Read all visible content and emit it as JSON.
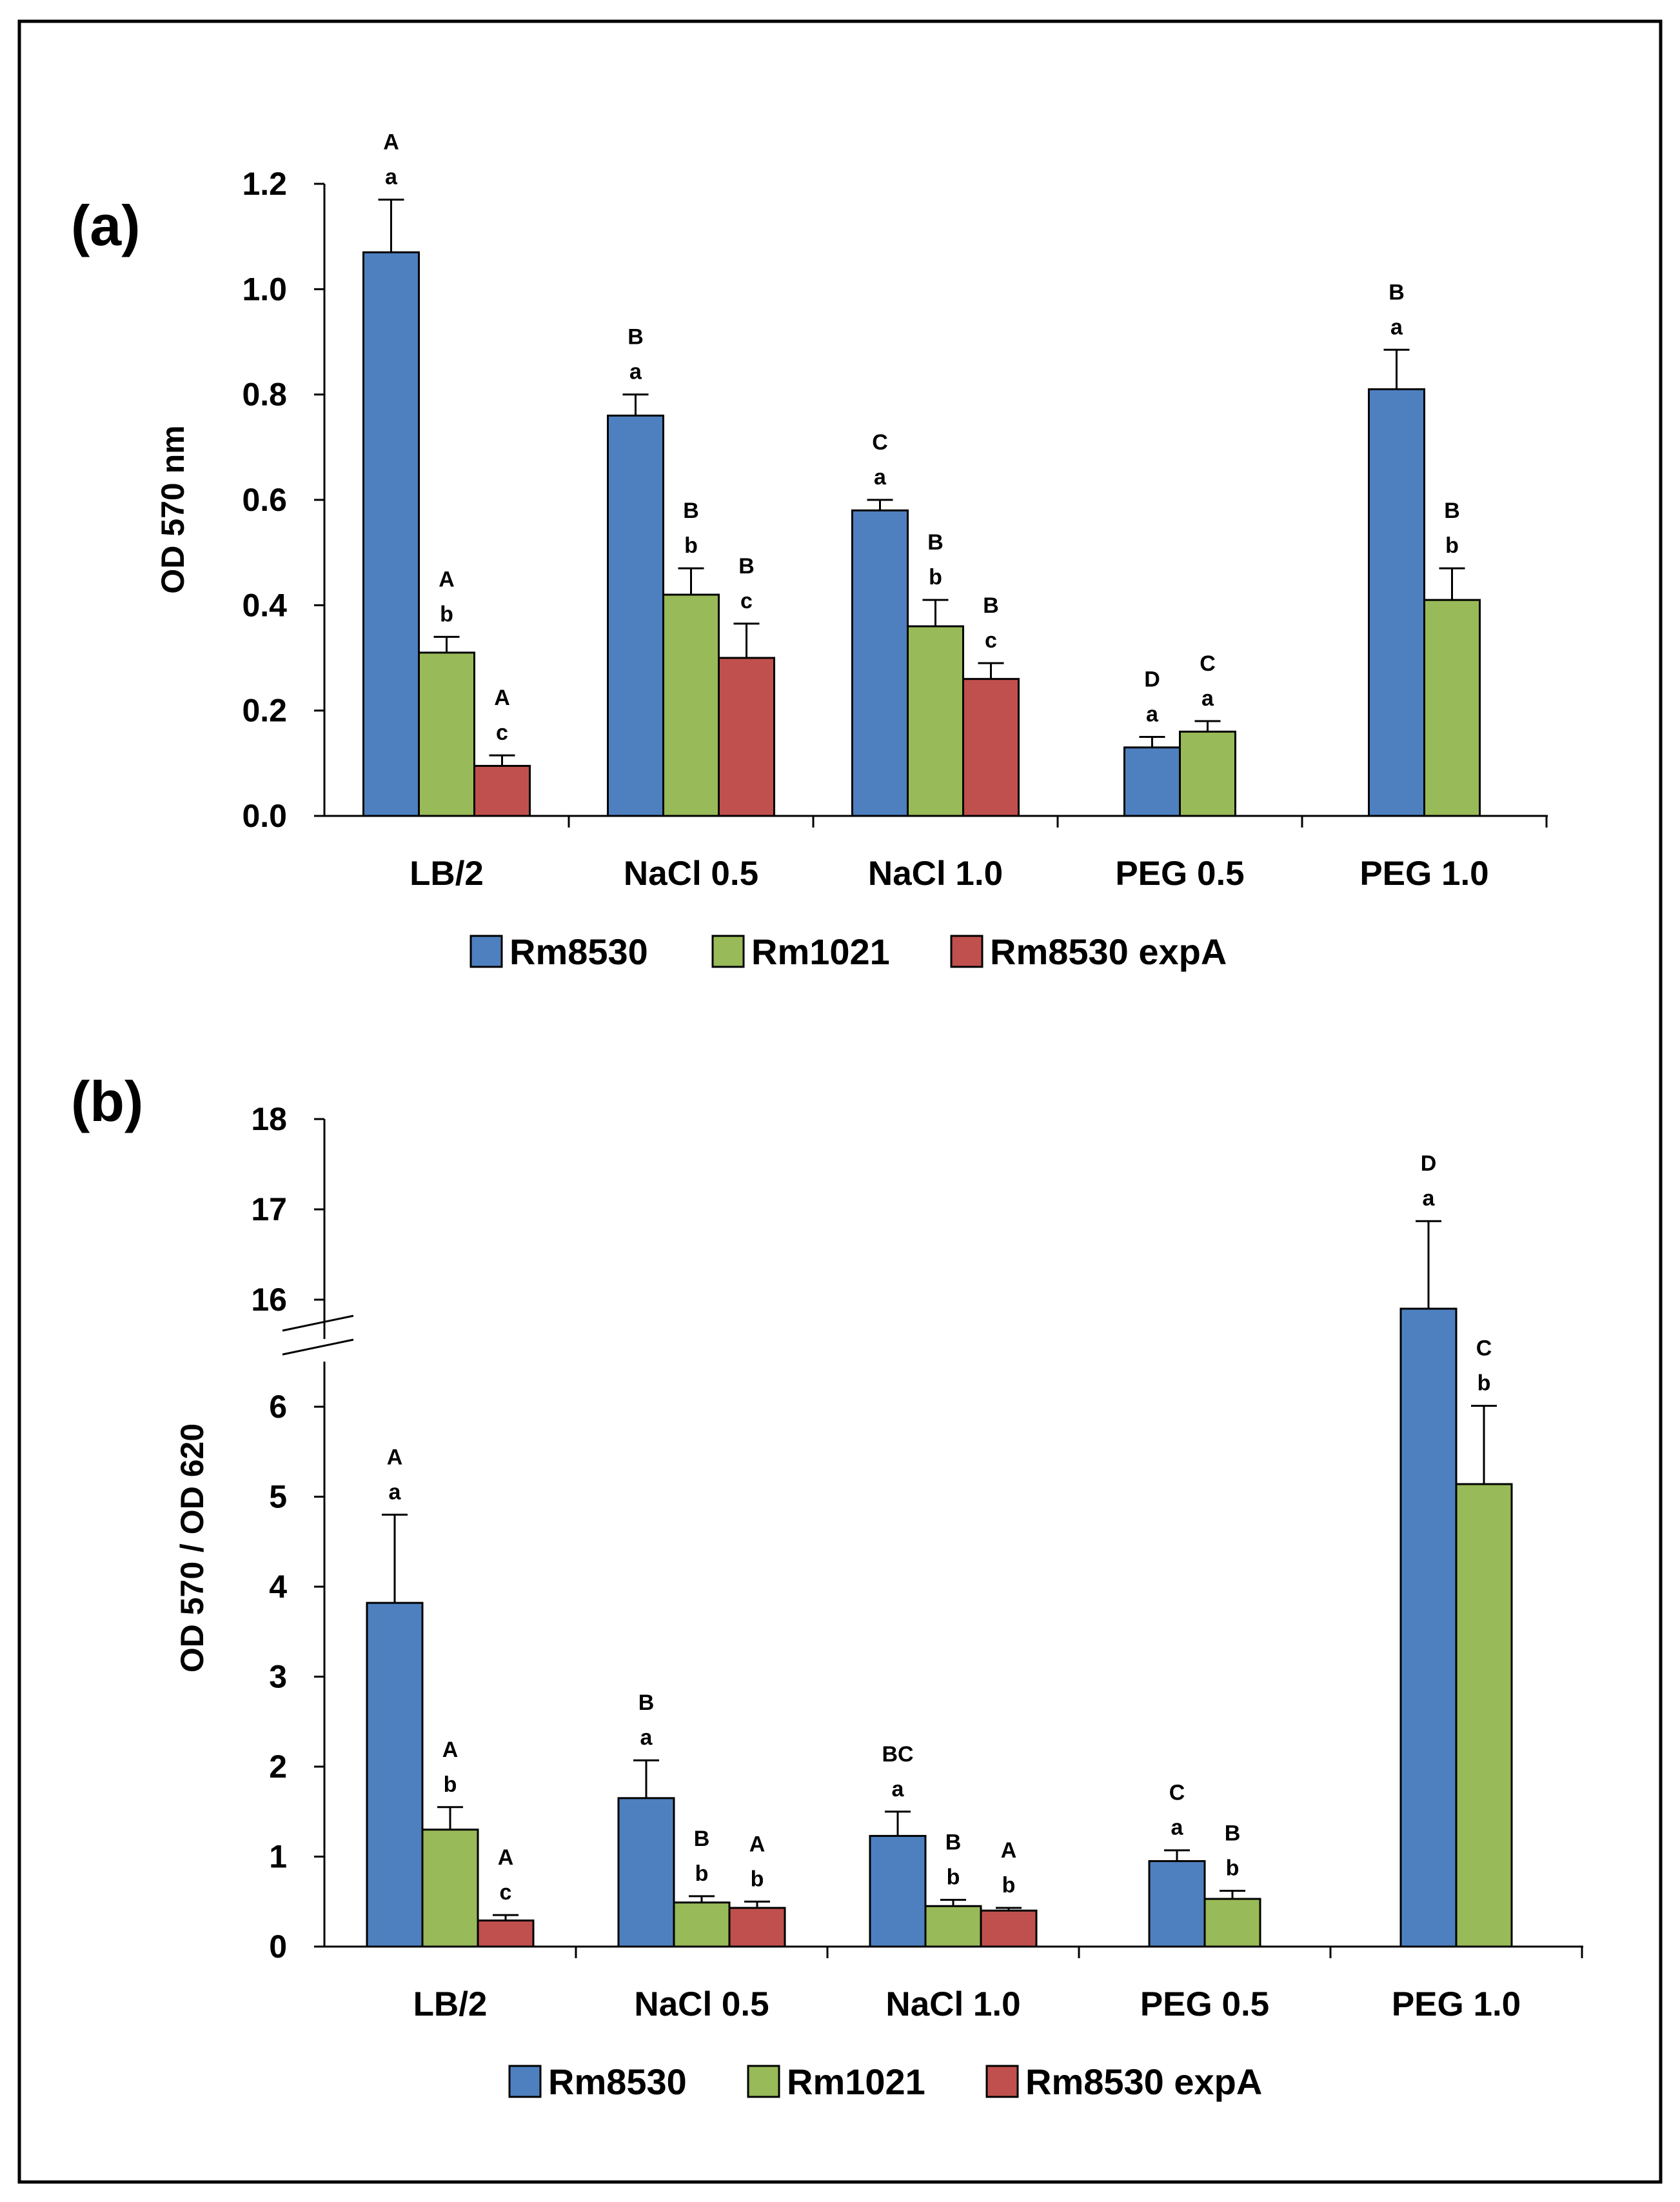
{
  "colors": {
    "Rm8530": "#4e80c0",
    "Rm1021": "#98ba58",
    "Rm8530 expA": "#c0504d",
    "bar_stroke": "#000000"
  },
  "chart_data": [
    {
      "panel": "(a)",
      "type": "bar",
      "ylabel": "OD 570 nm",
      "ylim": [
        0,
        1.2
      ],
      "yticks": [
        "0.0",
        "0.2",
        "0.4",
        "0.6",
        "0.8",
        "1.0",
        "1.2"
      ],
      "categories": [
        "LB/2",
        "NaCl 0.5",
        "NaCl 1.0",
        "PEG 0.5",
        "PEG 1.0"
      ],
      "series": [
        {
          "name": "Rm8530",
          "values": [
            1.07,
            0.76,
            0.58,
            0.13,
            0.81
          ],
          "errors": [
            0.1,
            0.04,
            0.02,
            0.02,
            0.075
          ],
          "labels": [
            [
              "A",
              "a"
            ],
            [
              "B",
              "a"
            ],
            [
              "C",
              "a"
            ],
            [
              "D",
              "a"
            ],
            [
              "B",
              "a"
            ]
          ]
        },
        {
          "name": "Rm1021",
          "values": [
            0.31,
            0.42,
            0.36,
            0.16,
            0.41
          ],
          "errors": [
            0.03,
            0.05,
            0.05,
            0.02,
            0.06
          ],
          "labels": [
            [
              "A",
              "b"
            ],
            [
              "B",
              "b"
            ],
            [
              "B",
              "b"
            ],
            [
              "C",
              "a"
            ],
            [
              "B",
              "b"
            ]
          ]
        },
        {
          "name": "Rm8530 expA",
          "values": [
            0.095,
            0.3,
            0.26,
            null,
            null
          ],
          "errors": [
            0.02,
            0.065,
            0.03,
            null,
            null
          ],
          "labels": [
            [
              "A",
              "c"
            ],
            [
              "B",
              "c"
            ],
            [
              "B",
              "c"
            ],
            null,
            null
          ]
        }
      ],
      "legend": [
        "Rm8530",
        "Rm1021",
        "Rm8530 expA"
      ],
      "legend_position": "bottom",
      "grid": false
    },
    {
      "panel": "(b)",
      "type": "bar",
      "ylabel": "OD 570 / OD 620",
      "ylim": [
        0,
        18
      ],
      "axis_break": [
        6.5,
        15.5
      ],
      "yticks": [
        "0",
        "1",
        "2",
        "3",
        "4",
        "5",
        "6",
        "16",
        "17",
        "18"
      ],
      "categories": [
        "LB/2",
        "NaCl 0.5",
        "NaCl 1.0",
        "PEG 0.5",
        "PEG 1.0"
      ],
      "series": [
        {
          "name": "Rm8530",
          "values": [
            3.82,
            1.65,
            1.23,
            0.95,
            15.9
          ],
          "errors": [
            0.98,
            0.42,
            0.27,
            0.12,
            0.97
          ],
          "labels": [
            [
              "A",
              "a"
            ],
            [
              "B",
              "a"
            ],
            [
              "BC",
              "a"
            ],
            [
              "C",
              "a"
            ],
            [
              "D",
              "a"
            ]
          ]
        },
        {
          "name": "Rm1021",
          "values": [
            1.3,
            0.49,
            0.45,
            0.53,
            5.14
          ],
          "errors": [
            0.25,
            0.07,
            0.07,
            0.09,
            0.87
          ],
          "labels": [
            [
              "A",
              "b"
            ],
            [
              "B",
              "b"
            ],
            [
              "B",
              "b"
            ],
            [
              "B",
              "b"
            ],
            [
              "C",
              "b"
            ]
          ]
        },
        {
          "name": "Rm8530 expA",
          "values": [
            0.29,
            0.43,
            0.4,
            null,
            null
          ],
          "errors": [
            0.06,
            0.07,
            0.03,
            null,
            null
          ],
          "labels": [
            [
              "A",
              "c"
            ],
            [
              "A",
              "b"
            ],
            [
              "A",
              "b"
            ],
            null,
            null
          ]
        }
      ],
      "legend": [
        "Rm8530",
        "Rm1021",
        "Rm8530 expA"
      ],
      "legend_position": "bottom",
      "grid": false
    }
  ]
}
